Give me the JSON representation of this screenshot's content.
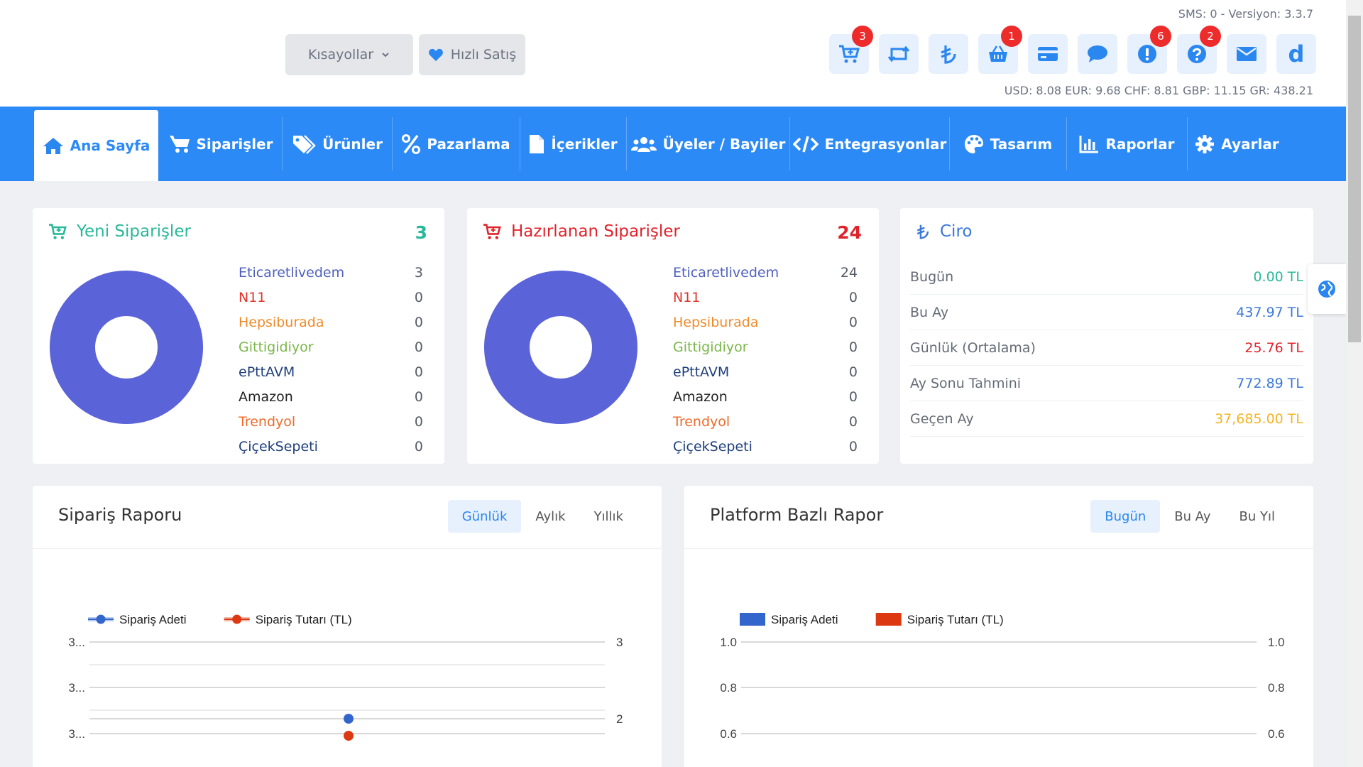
{
  "header": {
    "sms_version": "SMS: 0 - Versiyon: 3.3.7",
    "rates": "USD: 8.08 EUR: 9.68 CHF: 8.81 GBP: 11.15 GR: 438.21",
    "shortcuts_label": "Kısayollar",
    "quick_sale_label": "Hızlı Satış",
    "icon_buttons": [
      {
        "icon": "cart-icon",
        "badge": "3"
      },
      {
        "icon": "retweet-icon",
        "badge": ""
      },
      {
        "icon": "lira-icon",
        "badge": ""
      },
      {
        "icon": "basket-icon",
        "badge": "1"
      },
      {
        "icon": "credit-card-icon",
        "badge": ""
      },
      {
        "icon": "comment-icon",
        "badge": ""
      },
      {
        "icon": "exclamation-icon",
        "badge": "6"
      },
      {
        "icon": "question-icon",
        "badge": "2"
      },
      {
        "icon": "envelope-icon",
        "badge": ""
      },
      {
        "icon": "letter-d-icon",
        "letter": "d"
      }
    ]
  },
  "nav": {
    "items": [
      {
        "label": "Ana Sayfa",
        "icon": "home-icon",
        "active": true
      },
      {
        "label": "Siparişler",
        "icon": "cart-icon"
      },
      {
        "label": "Ürünler",
        "icon": "tags-icon"
      },
      {
        "label": "Pazarlama",
        "icon": "percent-icon"
      },
      {
        "label": "İçerikler",
        "icon": "file-icon"
      },
      {
        "label": "Üyeler / Bayiler",
        "icon": "users-icon"
      },
      {
        "label": "Entegrasyonlar",
        "icon": "code-icon"
      },
      {
        "label": "Tasarım",
        "icon": "palette-icon"
      },
      {
        "label": "Raporlar",
        "icon": "chart-icon"
      },
      {
        "label": "Ayarlar",
        "icon": "gear-icon"
      }
    ]
  },
  "new_orders": {
    "title": "Yeni Siparişler",
    "count": "3",
    "color": "#29b89a",
    "platforms": [
      {
        "name": "Eticaretlivedem",
        "value": "3",
        "color": "#4f5fbf"
      },
      {
        "name": "N11",
        "value": "0",
        "color": "#e0332b"
      },
      {
        "name": "Hepsiburada",
        "value": "0",
        "color": "#f08a2a"
      },
      {
        "name": "Gittigidiyor",
        "value": "0",
        "color": "#7ab648"
      },
      {
        "name": "ePttAVM",
        "value": "0",
        "color": "#1f3f7a"
      },
      {
        "name": "Amazon",
        "value": "0",
        "color": "#222222"
      },
      {
        "name": "Trendyol",
        "value": "0",
        "color": "#f06a2a"
      },
      {
        "name": "ÇiçekSepeti",
        "value": "0",
        "color": "#1f3f7a"
      }
    ]
  },
  "preparing_orders": {
    "title": "Hazırlanan Siparişler",
    "count": "24",
    "color": "#e0232b",
    "platforms": [
      {
        "name": "Eticaretlivedem",
        "value": "24",
        "color": "#4f5fbf"
      },
      {
        "name": "N11",
        "value": "0",
        "color": "#e0332b"
      },
      {
        "name": "Hepsiburada",
        "value": "0",
        "color": "#f08a2a"
      },
      {
        "name": "Gittigidiyor",
        "value": "0",
        "color": "#7ab648"
      },
      {
        "name": "ePttAVM",
        "value": "0",
        "color": "#1f3f7a"
      },
      {
        "name": "Amazon",
        "value": "0",
        "color": "#222222"
      },
      {
        "name": "Trendyol",
        "value": "0",
        "color": "#f06a2a"
      },
      {
        "name": "ÇiçekSepeti",
        "value": "0",
        "color": "#1f3f7a"
      }
    ]
  },
  "ciro": {
    "title": "Ciro",
    "rows": [
      {
        "label": "Bugün",
        "value": "0.00 TL",
        "color": "#29b89a"
      },
      {
        "label": "Bu Ay",
        "value": "437.97 TL",
        "color": "#3b78d8"
      },
      {
        "label": "Günlük (Ortalama)",
        "value": "25.76 TL",
        "color": "#e0232b"
      },
      {
        "label": "Ay Sonu Tahmini",
        "value": "772.89 TL",
        "color": "#3b78d8"
      },
      {
        "label": "Geçen Ay",
        "value": "37,685.00 TL",
        "color": "#f5b324"
      }
    ]
  },
  "order_report": {
    "title": "Sipariş Raporu",
    "tabs": [
      "Günlük",
      "Aylık",
      "Yıllık"
    ],
    "active_tab": 0
  },
  "platform_report": {
    "title": "Platform Bazlı Rapor",
    "tabs": [
      "Bugün",
      "Bu Ay",
      "Bu Yıl"
    ],
    "active_tab": 0
  },
  "chart_data": [
    {
      "type": "line",
      "legend": [
        "Sipariş Adeti",
        "Sipariş Tutarı (TL)"
      ],
      "left_ticks": [
        "3...",
        "3...",
        "3..."
      ],
      "right_ticks": [
        "3",
        "2"
      ],
      "series": [
        {
          "name": "Sipariş Adeti",
          "color": "#3366cc",
          "values": [
            2
          ]
        },
        {
          "name": "Sipariş Tutarı (TL)",
          "color": "#dc3912",
          "values": [
            437.97
          ]
        }
      ],
      "grid": true,
      "legend_position": "top"
    },
    {
      "type": "bar",
      "legend": [
        "Sipariş Adeti",
        "Sipariş Tutarı (TL)"
      ],
      "left_ticks": [
        "1.0",
        "0.8",
        "0.6"
      ],
      "right_ticks": [
        "1.0",
        "0.8",
        "0.6"
      ],
      "series": [
        {
          "name": "Sipariş Adeti",
          "color": "#3366cc",
          "values": []
        },
        {
          "name": "Sipariş Tutarı (TL)",
          "color": "#dc3912",
          "values": []
        }
      ],
      "ylim": [
        0,
        1
      ],
      "grid": true,
      "legend_position": "top"
    }
  ]
}
